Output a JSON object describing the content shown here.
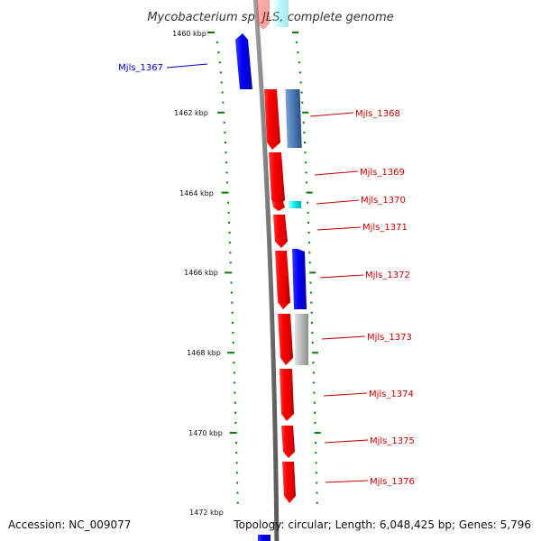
{
  "title": "Mycobacterium sp. JLS, complete genome",
  "accession_label": "Accession: NC_009077",
  "topology_label": "Topology: circular; Length: 6,048,425 bp; Genes: 5,796",
  "ruler_labels": [
    "1460 kbp",
    "1462 kbp",
    "1464 kbp",
    "1466 kbp",
    "1468 kbp",
    "1470 kbp",
    "1472 kbp"
  ],
  "genes": [
    {
      "id": "Mjls_1367",
      "label": "Mjls_1367",
      "color": "#0000ff"
    },
    {
      "id": "Mjls_1368",
      "label": "Mjls_1368",
      "color": "#ff0000"
    },
    {
      "id": "Mjls_1369",
      "label": "Mjls_1369",
      "color": "#ff0000"
    },
    {
      "id": "Mjls_1370",
      "label": "Mjls_1370",
      "color": "#ff0000"
    },
    {
      "id": "Mjls_1371",
      "label": "Mjls_1371",
      "color": "#ff0000"
    },
    {
      "id": "Mjls_1372",
      "label": "Mjls_1372",
      "color": "#ff0000"
    },
    {
      "id": "Mjls_1373",
      "label": "Mjls_1373",
      "color": "#ff0000"
    },
    {
      "id": "Mjls_1374",
      "label": "Mjls_1374",
      "color": "#ff0000"
    },
    {
      "id": "Mjls_1375",
      "label": "Mjls_1375",
      "color": "#ff0000"
    },
    {
      "id": "Mjls_1376",
      "label": "Mjls_1376",
      "color": "#ff0000"
    }
  ],
  "feature_colors": {
    "forward_cds": "#ff0000",
    "reverse_cds": "#0000ff",
    "steelblue_feature": "#4a7ab5",
    "cyan_feature": "#00e0e8",
    "gray_feature": "#b4b4b4",
    "backbone": "#808080",
    "tick": "#008000"
  }
}
